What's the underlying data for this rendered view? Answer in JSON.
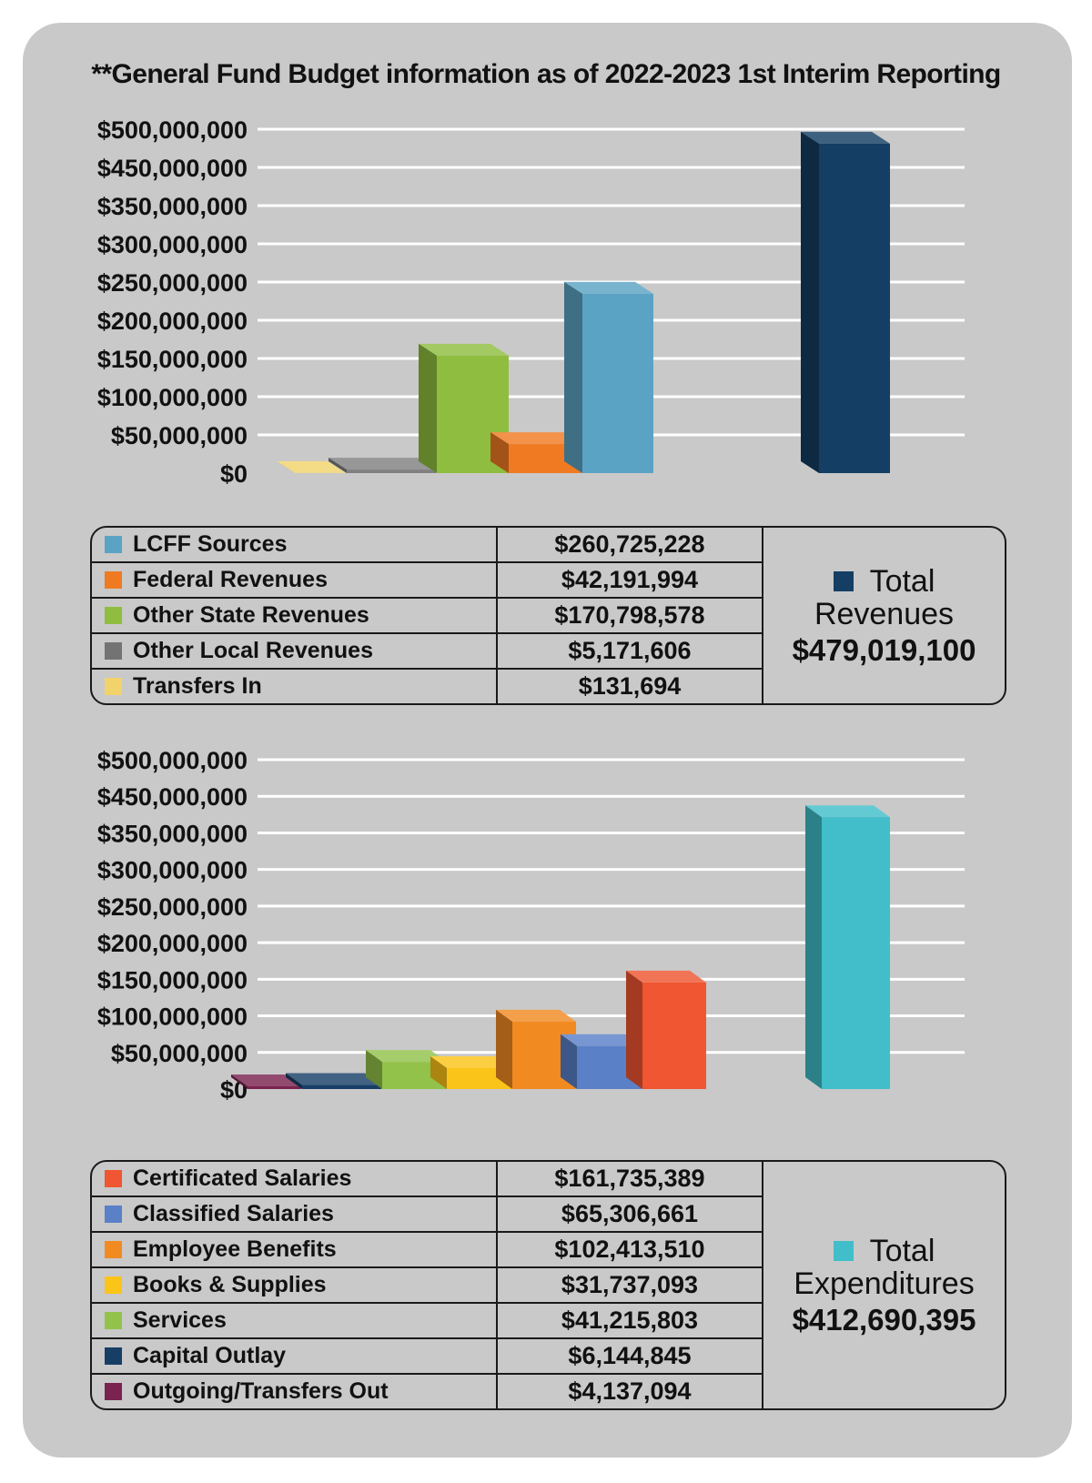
{
  "title": "**General Fund Budget information as of 2022-2023 1st Interim Reporting",
  "chart_data": [
    {
      "type": "bar",
      "name": "revenues",
      "title": "**General Fund Budget information as of 2022-2023 1st Interim Reporting",
      "ylim": [
        0,
        500000000
      ],
      "yticks": [
        "$500,000,000",
        "$450,000,000",
        "$350,000,000",
        "$300,000,000",
        "$250,000,000",
        "$200,000,000",
        "$150,000,000",
        "$100,000,000",
        "$50,000,000",
        "$0"
      ],
      "series": [
        {
          "name": "Transfers In",
          "value": 131694,
          "color": "#f2d36b"
        },
        {
          "name": "Other Local Revenues",
          "value": 5171606,
          "color": "#808080"
        },
        {
          "name": "Other State Revenues",
          "value": 170798578,
          "color": "#8fbd3f"
        },
        {
          "name": "Federal Revenues",
          "value": 42191994,
          "color": "#f07a22"
        },
        {
          "name": "LCFF Sources",
          "value": 260725228,
          "color": "#5ba3c4"
        },
        {
          "name": "Total Revenues",
          "value": 479019100,
          "color": "#143e63"
        }
      ]
    },
    {
      "type": "bar",
      "name": "expenditures",
      "ylim": [
        0,
        500000000
      ],
      "yticks": [
        "$500,000,000",
        "$450,000,000",
        "$350,000,000",
        "$300,000,000",
        "$250,000,000",
        "$200,000,000",
        "$150,000,000",
        "$100,000,000",
        "$50,000,000",
        "$0"
      ],
      "series": [
        {
          "name": "Outgoing/Transfers Out",
          "value": 4137094,
          "color": "#7a2350"
        },
        {
          "name": "Capital Outlay",
          "value": 6144845,
          "color": "#173f66"
        },
        {
          "name": "Services",
          "value": 41215803,
          "color": "#93c24a"
        },
        {
          "name": "Books & Supplies",
          "value": 31737093,
          "color": "#fbc418"
        },
        {
          "name": "Employee Benefits",
          "value": 102413510,
          "color": "#f28a22"
        },
        {
          "name": "Classified Salaries",
          "value": 65306661,
          "color": "#5a80c8"
        },
        {
          "name": "Certificated Salaries",
          "value": 161735389,
          "color": "#ef5631"
        },
        {
          "name": "Total Expenditures",
          "value": 412690395,
          "color": "#41bec9"
        }
      ]
    }
  ],
  "revenues": {
    "rows": [
      {
        "label": "LCFF Sources",
        "value": "$260,725,228",
        "color": "#5ba3c4"
      },
      {
        "label": "Federal Revenues",
        "value": "$42,191,994",
        "color": "#f07a22"
      },
      {
        "label": "Other State Revenues",
        "value": "$170,798,578",
        "color": "#8fbd3f"
      },
      {
        "label": "Other Local Revenues",
        "value": "$5,171,606",
        "color": "#737373"
      },
      {
        "label": "Transfers In",
        "value": "$131,694",
        "color": "#f2d36b"
      }
    ],
    "total": {
      "line1": "Total",
      "line2": "Revenues",
      "amount": "$479,019,100",
      "color": "#143e63"
    }
  },
  "expenditures": {
    "rows": [
      {
        "label": "Certificated Salaries",
        "value": "$161,735,389",
        "color": "#ef5631"
      },
      {
        "label": "Classified Salaries",
        "value": "$65,306,661",
        "color": "#5a80c8"
      },
      {
        "label": "Employee Benefits",
        "value": "$102,413,510",
        "color": "#f28a22"
      },
      {
        "label": "Books & Supplies",
        "value": "$31,737,093",
        "color": "#fbc418"
      },
      {
        "label": "Services",
        "value": "$41,215,803",
        "color": "#93c24a"
      },
      {
        "label": "Capital Outlay",
        "value": "$6,144,845",
        "color": "#173f66"
      },
      {
        "label": "Outgoing/Transfers Out",
        "value": "$4,137,094",
        "color": "#7a2350"
      }
    ],
    "total": {
      "line1": "Total",
      "line2": "Expenditures",
      "amount": "$412,690,395",
      "color": "#41bec9"
    }
  }
}
